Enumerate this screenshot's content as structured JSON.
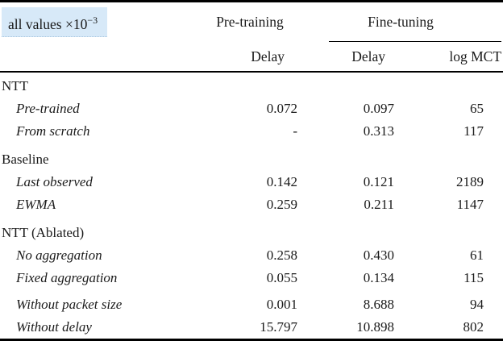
{
  "note": {
    "text": "all values",
    "multiplier": " ×10",
    "exponent": "−3"
  },
  "header": {
    "pretraining": "Pre-training",
    "finetuning": "Fine-tuning",
    "pre_delay": "Delay",
    "ft_delay": "Delay",
    "ft_logmct": "log MCT"
  },
  "groups": [
    {
      "title": "NTT",
      "rows": [
        {
          "label": "Pre-trained",
          "pre_delay": "0.072",
          "ft_delay": "0.097",
          "log_mct": "65"
        },
        {
          "label": "From scratch",
          "pre_delay": "-",
          "ft_delay": "0.313",
          "log_mct": "117"
        }
      ]
    },
    {
      "title": "Baseline",
      "rows": [
        {
          "label": "Last observed",
          "pre_delay": "0.142",
          "ft_delay": "0.121",
          "log_mct": "2189"
        },
        {
          "label": "EWMA",
          "pre_delay": "0.259",
          "ft_delay": "0.211",
          "log_mct": "1147"
        }
      ]
    },
    {
      "title": "NTT (Ablated)",
      "rows": [
        {
          "label": "No aggregation",
          "pre_delay": "0.258",
          "ft_delay": "0.430",
          "log_mct": "61"
        },
        {
          "label": "Fixed aggregation",
          "pre_delay": "0.055",
          "ft_delay": "0.134",
          "log_mct": "115"
        },
        {
          "label": "Without packet size",
          "pre_delay": "0.001",
          "ft_delay": "8.688",
          "log_mct": "94"
        },
        {
          "label": "Without delay",
          "pre_delay": "15.797",
          "ft_delay": "10.898",
          "log_mct": "802"
        }
      ]
    }
  ],
  "colors": {
    "highlight_bg": "#d7e9f8",
    "rule": "#000000",
    "text": "#1a1a1a"
  }
}
